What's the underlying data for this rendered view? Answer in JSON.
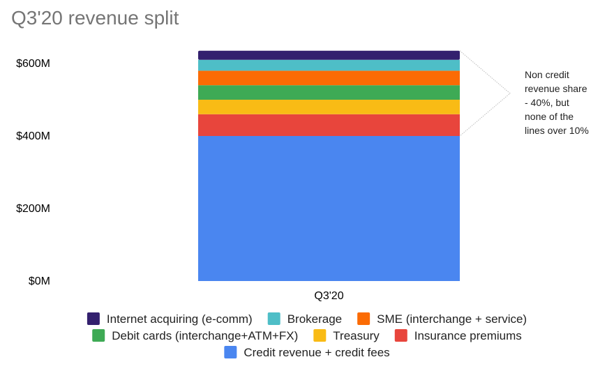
{
  "chart_data": {
    "type": "bar",
    "stacked": true,
    "title": "Q3'20 revenue split",
    "categories": [
      "Q3'20"
    ],
    "ylim": [
      0,
      600
    ],
    "y_ticks": [
      {
        "value": 0,
        "label": "$0M"
      },
      {
        "value": 200,
        "label": "$200M"
      },
      {
        "value": 400,
        "label": "$400M"
      },
      {
        "value": 600,
        "label": "$600M"
      }
    ],
    "grid": false,
    "legend_position": "bottom",
    "series": [
      {
        "name": "Credit revenue + credit fees",
        "values": [
          400
        ],
        "color": "#4a86f0"
      },
      {
        "name": "Insurance premiums",
        "values": [
          60
        ],
        "color": "#e8453c"
      },
      {
        "name": "Treasury",
        "values": [
          40
        ],
        "color": "#f9bb15"
      },
      {
        "name": "Debit cards (interchange+ATM+FX)",
        "values": [
          40
        ],
        "color": "#3eaa55"
      },
      {
        "name": "SME (interchange + service)",
        "values": [
          40
        ],
        "color": "#fb6b04"
      },
      {
        "name": "Brokerage",
        "values": [
          30
        ],
        "color": "#4ebec7"
      },
      {
        "name": "Internet acquiring (e-comm)",
        "values": [
          25
        ],
        "color": "#33206e"
      }
    ],
    "annotation": {
      "lines": [
        "Non credit",
        "revenue share",
        "- 40%, but",
        "none of the",
        "lines over 10%"
      ]
    },
    "legend_rows": [
      [
        "Internet acquiring (e-comm)",
        "Brokerage",
        "SME (interchange + service)"
      ],
      [
        "Debit cards (interchange+ATM+FX)",
        "Treasury",
        "Insurance premiums"
      ],
      [
        "Credit revenue + credit fees"
      ]
    ]
  }
}
